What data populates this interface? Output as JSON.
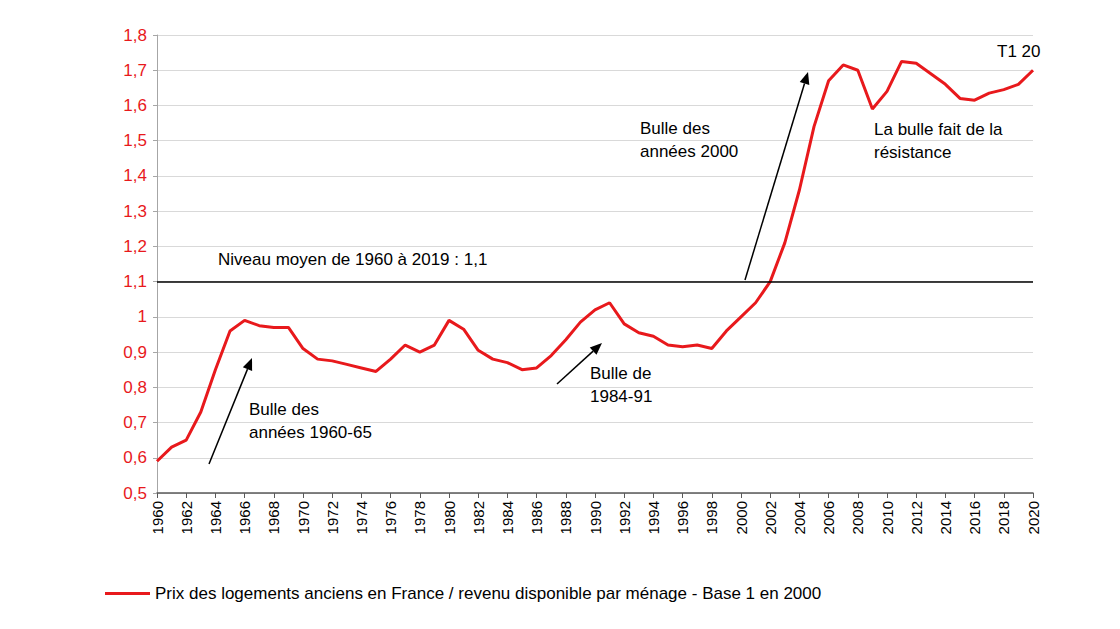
{
  "chart_data": {
    "type": "line",
    "x": [
      1960,
      1961,
      1962,
      1963,
      1964,
      1965,
      1966,
      1967,
      1968,
      1969,
      1970,
      1971,
      1972,
      1973,
      1974,
      1975,
      1976,
      1977,
      1978,
      1979,
      1980,
      1981,
      1982,
      1983,
      1984,
      1985,
      1986,
      1987,
      1988,
      1989,
      1990,
      1991,
      1992,
      1993,
      1994,
      1995,
      1996,
      1997,
      1998,
      1999,
      2000,
      2001,
      2002,
      2003,
      2004,
      2005,
      2006,
      2007,
      2008,
      2009,
      2010,
      2011,
      2012,
      2013,
      2014,
      2015,
      2016,
      2017,
      2018,
      2019,
      2020
    ],
    "series": [
      {
        "name": "Prix des logements anciens en France / revenu disponible par ménage - Base 1 en 2000",
        "color": "#e8191c",
        "values": [
          0.59,
          0.63,
          0.65,
          0.73,
          0.85,
          0.96,
          0.99,
          0.975,
          0.97,
          0.97,
          0.91,
          0.88,
          0.875,
          0.865,
          0.855,
          0.845,
          0.88,
          0.92,
          0.9,
          0.92,
          0.99,
          0.965,
          0.905,
          0.88,
          0.87,
          0.85,
          0.855,
          0.89,
          0.935,
          0.985,
          1.02,
          1.04,
          0.98,
          0.955,
          0.945,
          0.92,
          0.915,
          0.92,
          0.91,
          0.96,
          1.0,
          1.04,
          1.1,
          1.21,
          1.36,
          1.54,
          1.67,
          1.715,
          1.7,
          1.59,
          1.64,
          1.725,
          1.72,
          1.69,
          1.66,
          1.62,
          1.615,
          1.635,
          1.645,
          1.66,
          1.7
        ]
      }
    ],
    "xlim": [
      1960,
      2020
    ],
    "xticks": [
      1960,
      1962,
      1964,
      1966,
      1968,
      1970,
      1972,
      1974,
      1976,
      1978,
      1980,
      1982,
      1984,
      1986,
      1988,
      1990,
      1992,
      1994,
      1996,
      1998,
      2000,
      2002,
      2004,
      2006,
      2008,
      2010,
      2012,
      2014,
      2016,
      2018,
      2020
    ],
    "ylim": [
      0.5,
      1.8
    ],
    "yticks": [
      {
        "value": 0.5,
        "label": "0,5"
      },
      {
        "value": 0.6,
        "label": "0,6"
      },
      {
        "value": 0.7,
        "label": "0,7"
      },
      {
        "value": 0.8,
        "label": "0,8"
      },
      {
        "value": 0.9,
        "label": "0,9"
      },
      1,
      {
        "value": 1.1,
        "label": "1,1"
      },
      {
        "value": 1.2,
        "label": "1,2"
      },
      {
        "value": 1.3,
        "label": "1,3"
      },
      {
        "value": 1.4,
        "label": "1,4"
      },
      {
        "value": 1.5,
        "label": "1,5"
      },
      {
        "value": 1.6,
        "label": "1,6"
      },
      {
        "value": 1.7,
        "label": "1,7"
      },
      {
        "value": 1.8,
        "label": "1,8"
      }
    ],
    "reference_line": {
      "value": 1.1,
      "label": "Niveau moyen de 1960 à 2019 : 1,1",
      "color": "#000000"
    },
    "annotations": [
      "Bulle des\nannées 1960-65",
      "Bulle de\n1984-91",
      "Bulle des\nannées 2000",
      "La bulle fait de la\nrésistance",
      "T1 20"
    ],
    "grid": true,
    "legend": "bottom"
  }
}
